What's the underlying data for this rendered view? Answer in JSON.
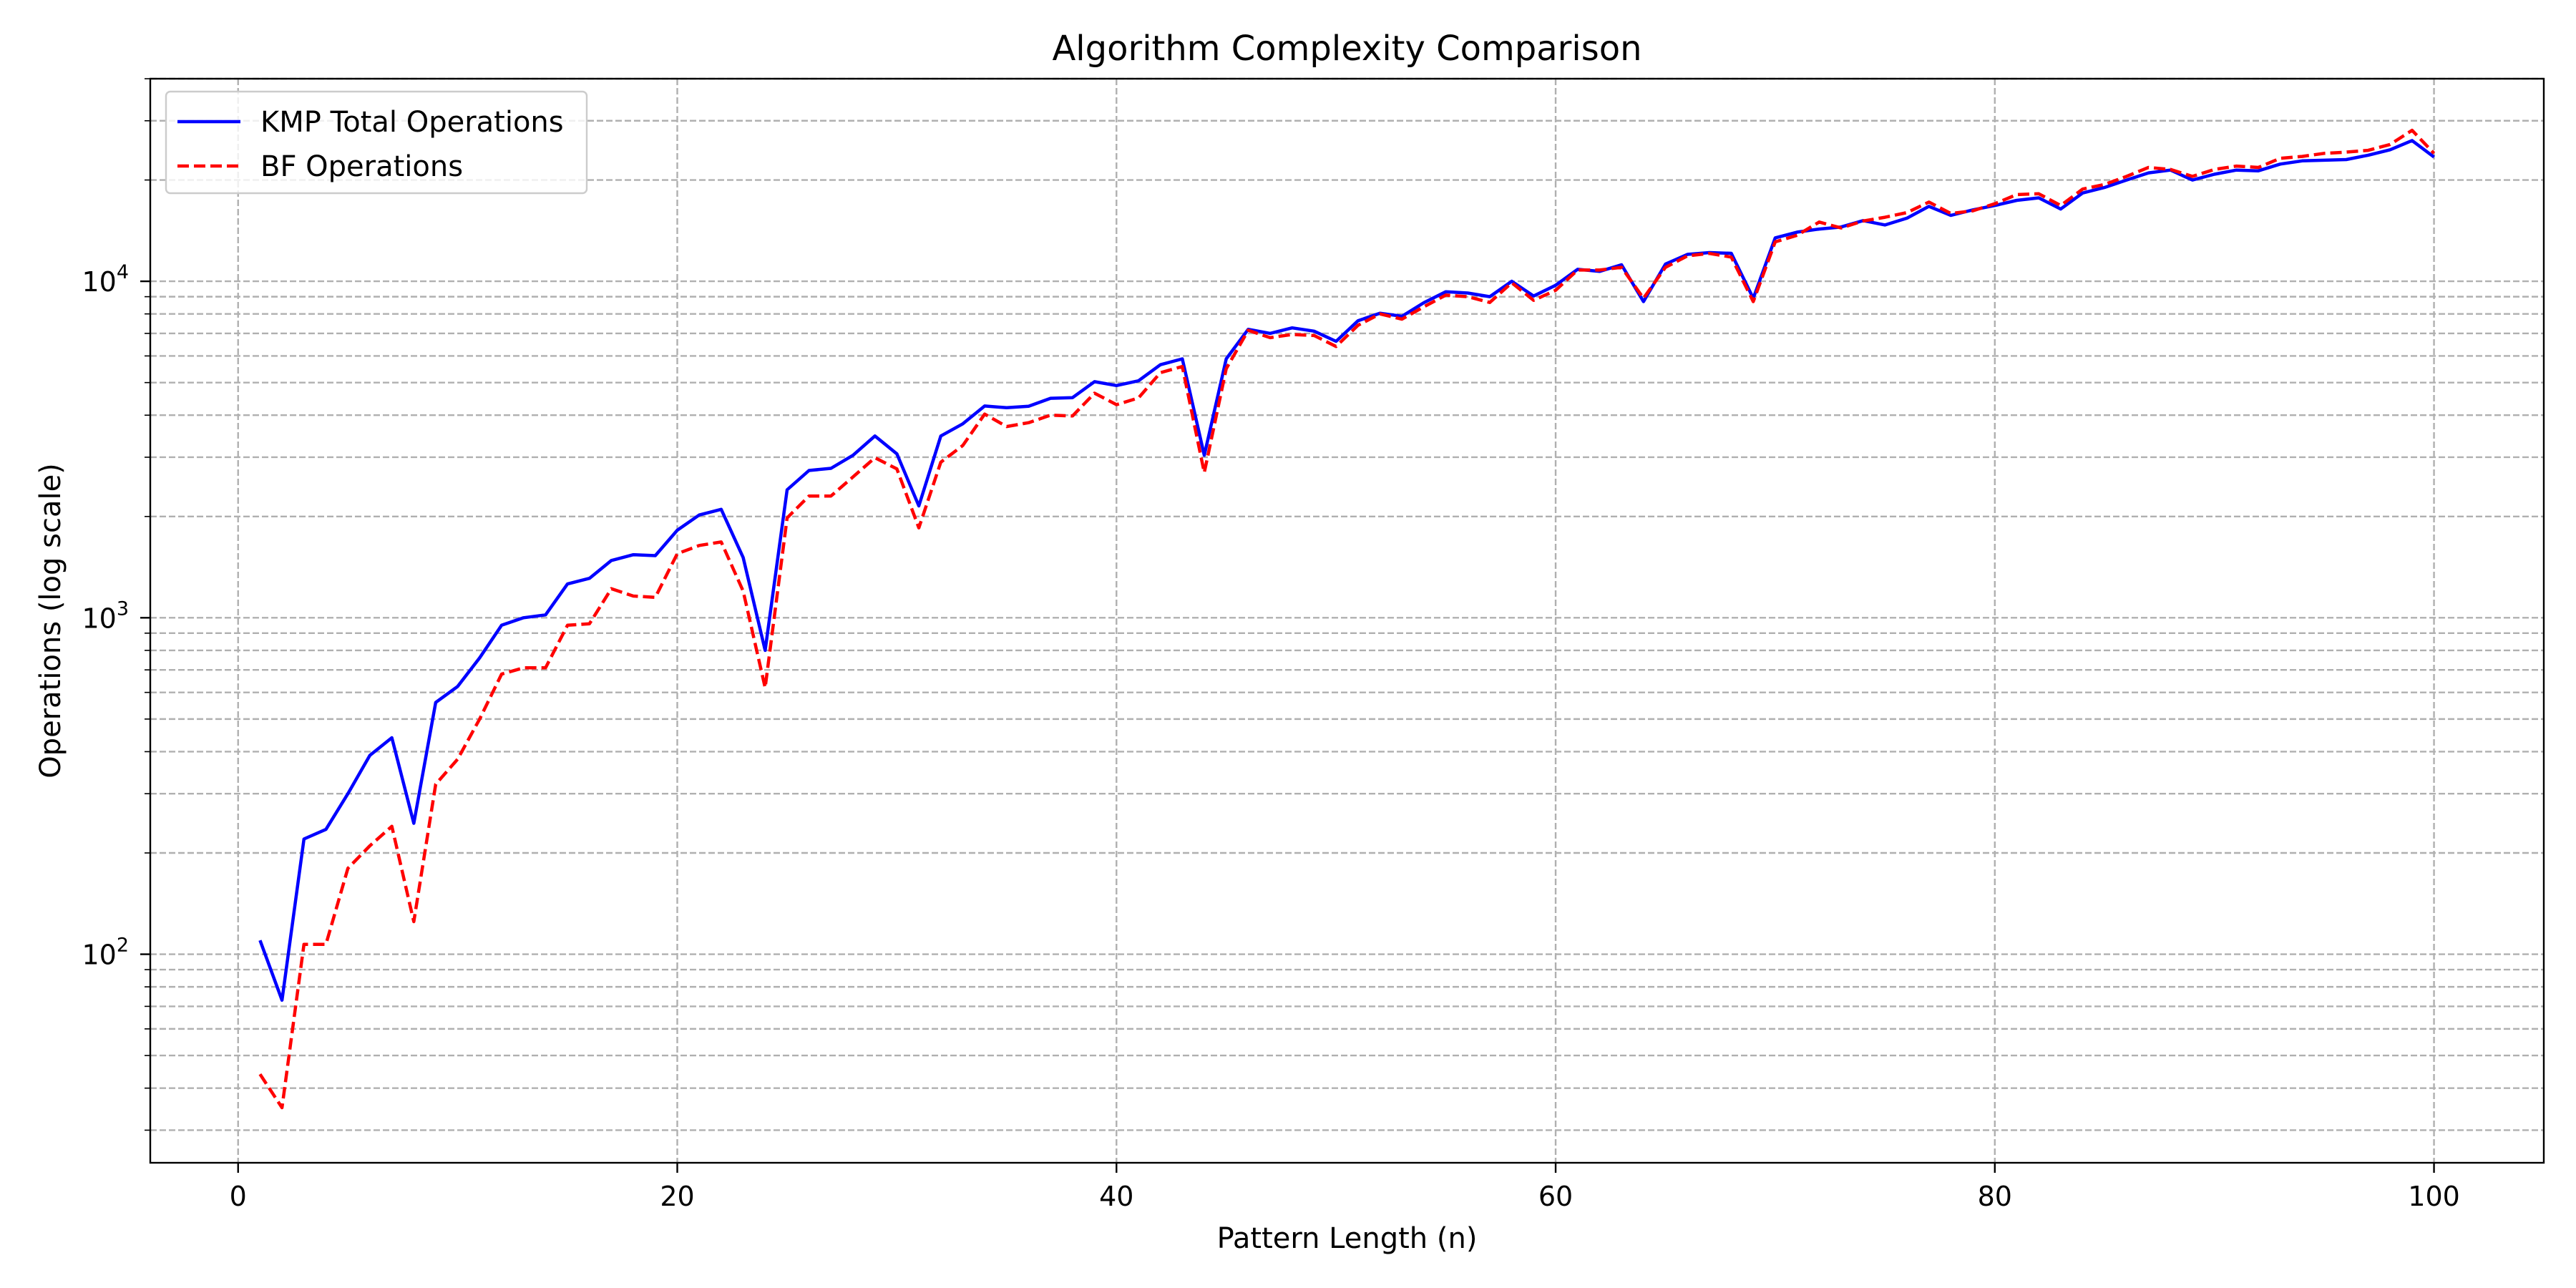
{
  "chart_data": {
    "type": "line",
    "title": "Algorithm Complexity Comparison",
    "xlabel": "Pattern Length (n)",
    "ylabel": "Operations (log scale)",
    "yscale": "log",
    "xlim": [
      -4,
      105
    ],
    "ylim": [
      24,
      40000
    ],
    "grid": true,
    "legend_position": "top-left",
    "x_ticks": [
      0,
      20,
      40,
      60,
      80,
      100
    ],
    "y_ticks": [
      {
        "value": 100,
        "base": "10",
        "exp": "2"
      },
      {
        "value": 1000,
        "base": "10",
        "exp": "3"
      },
      {
        "value": 10000,
        "base": "10",
        "exp": "4"
      }
    ],
    "x": [
      1,
      2,
      3,
      4,
      5,
      6,
      7,
      8,
      9,
      10,
      11,
      12,
      13,
      14,
      15,
      16,
      17,
      18,
      19,
      20,
      21,
      22,
      23,
      24,
      25,
      26,
      27,
      28,
      29,
      30,
      31,
      32,
      33,
      34,
      35,
      36,
      37,
      38,
      39,
      40,
      41,
      42,
      43,
      44,
      45,
      46,
      47,
      48,
      49,
      50,
      51,
      52,
      53,
      54,
      55,
      56,
      57,
      58,
      59,
      60,
      61,
      62,
      63,
      64,
      65,
      66,
      67,
      68,
      69,
      70,
      71,
      72,
      73,
      74,
      75,
      76,
      77,
      78,
      79,
      80,
      81,
      82,
      83,
      84,
      85,
      86,
      87,
      88,
      89,
      90,
      91,
      92,
      93,
      94,
      95,
      96,
      97,
      98,
      99,
      100
    ],
    "series": [
      {
        "name": "KMP Total Operations",
        "color": "#0000ff",
        "style": "solid",
        "values": [
          110,
          73,
          220,
          235,
          300,
          390,
          440,
          245,
          560,
          625,
          760,
          950,
          1000,
          1020,
          1260,
          1310,
          1480,
          1540,
          1530,
          1820,
          2020,
          2100,
          1510,
          800,
          2400,
          2740,
          2780,
          3040,
          3470,
          3070,
          2150,
          3470,
          3770,
          4260,
          4210,
          4250,
          4490,
          4510,
          5030,
          4900,
          5060,
          5650,
          5880,
          3040,
          5880,
          7200,
          7000,
          7270,
          7110,
          6630,
          7630,
          8040,
          7870,
          8640,
          9310,
          9230,
          9000,
          10000,
          9040,
          9730,
          10850,
          10700,
          11200,
          8700,
          11250,
          12020,
          12170,
          12110,
          8900,
          13460,
          14000,
          14300,
          14500,
          15150,
          14700,
          15400,
          16700,
          15700,
          16300,
          16800,
          17400,
          17700,
          16400,
          18300,
          19000,
          20000,
          21000,
          21400,
          20000,
          20800,
          21400,
          21300,
          22300,
          22800,
          22900,
          23000,
          23700,
          24600,
          26200,
          23400
        ]
      },
      {
        "name": "BF Operations",
        "color": "#ff0000",
        "style": "dashed",
        "values": [
          44,
          35,
          107,
          107,
          180,
          210,
          240,
          125,
          320,
          380,
          500,
          680,
          710,
          710,
          950,
          960,
          1220,
          1160,
          1150,
          1550,
          1640,
          1680,
          1200,
          620,
          1980,
          2300,
          2300,
          2620,
          2990,
          2770,
          1850,
          2900,
          3250,
          4030,
          3700,
          3800,
          4000,
          3980,
          4650,
          4300,
          4500,
          5350,
          5580,
          2700,
          5500,
          7150,
          6800,
          6950,
          6900,
          6400,
          7400,
          8000,
          7720,
          8400,
          9100,
          9000,
          8650,
          9900,
          8780,
          9400,
          10800,
          10800,
          11000,
          8900,
          11000,
          11900,
          12100,
          11800,
          8700,
          13100,
          13700,
          15000,
          14400,
          15100,
          15500,
          16000,
          17200,
          15900,
          16200,
          17000,
          18100,
          18200,
          16800,
          18800,
          19400,
          20500,
          21800,
          21500,
          20500,
          21500,
          22000,
          21800,
          23200,
          23500,
          24000,
          24200,
          24500,
          25500,
          28100,
          24000
        ]
      }
    ]
  }
}
